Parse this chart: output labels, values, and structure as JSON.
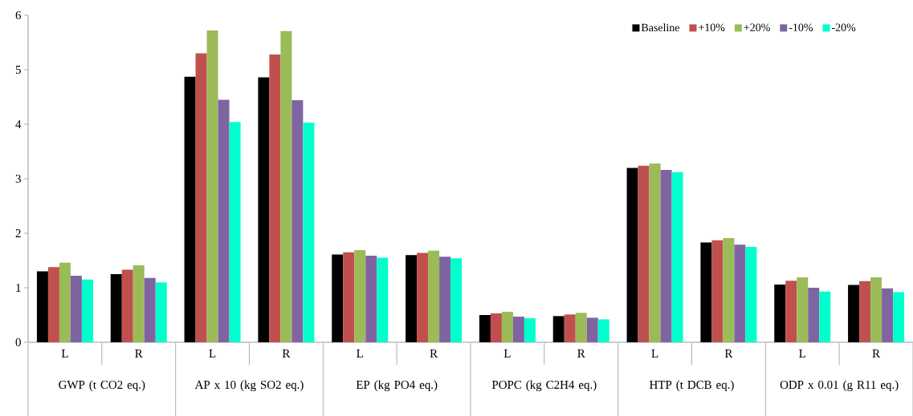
{
  "chart_data": {
    "type": "bar",
    "categories": [
      "L",
      "R",
      "L",
      "R",
      "L",
      "R",
      "L",
      "R",
      "L",
      "R",
      "L",
      "R"
    ],
    "annotations": [
      "GWP (t CO2 eq.)",
      "AP x 10 (kg SO2 eq.)",
      "EP (kg PO4 eq.)",
      "POPC (kg C2H4 eq.)",
      "HTP  (t DCB eq.)",
      "ODP x 0.01 (g R11 eq.)"
    ],
    "series": [
      {
        "name": "Baseline",
        "color": "#000000",
        "values": [
          1.3,
          1.25,
          4.87,
          4.86,
          1.61,
          1.6,
          0.5,
          0.48,
          3.2,
          1.83,
          1.06,
          1.05
        ]
      },
      {
        "name": "+10%",
        "color": "#c0504d",
        "values": [
          1.38,
          1.33,
          5.3,
          5.28,
          1.65,
          1.64,
          0.53,
          0.51,
          3.24,
          1.87,
          1.13,
          1.12
        ]
      },
      {
        "name": "+20%",
        "color": "#9bbb59",
        "values": [
          1.46,
          1.41,
          5.72,
          5.71,
          1.69,
          1.68,
          0.56,
          0.54,
          3.28,
          1.91,
          1.19,
          1.19
        ]
      },
      {
        "name": "-10%",
        "color": "#8064a2",
        "values": [
          1.22,
          1.18,
          4.45,
          4.44,
          1.59,
          1.57,
          0.47,
          0.45,
          3.16,
          1.79,
          1.0,
          0.99
        ]
      },
      {
        "name": "-20%",
        "color": "#00ffcc",
        "values": [
          1.15,
          1.1,
          4.04,
          4.03,
          1.55,
          1.54,
          0.44,
          0.42,
          3.12,
          1.75,
          0.93,
          0.92
        ]
      }
    ],
    "ylim": [
      0,
      6
    ],
    "yticks": [
      0,
      1,
      2,
      3,
      4,
      5,
      6
    ],
    "legend": "top right"
  }
}
